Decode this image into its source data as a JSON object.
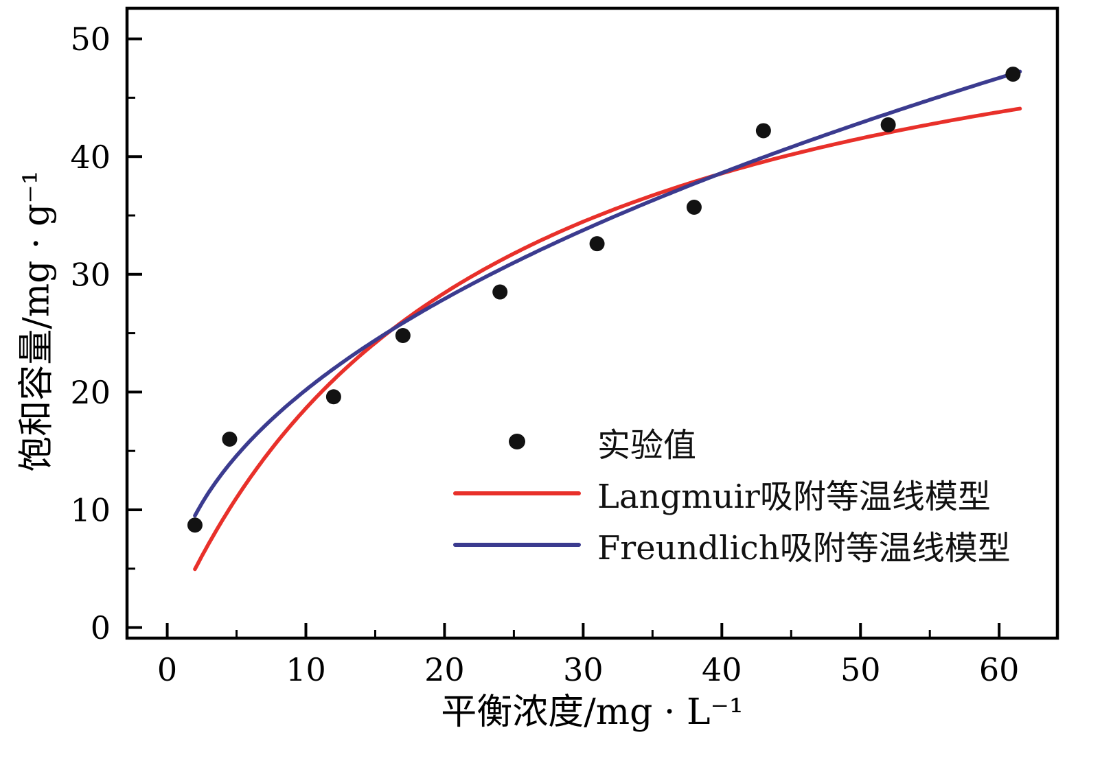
{
  "chart_data": {
    "type": "scatter",
    "title": "",
    "xlabel": "平衡浓度/mg · L⁻¹",
    "ylabel": "饱和容量/mg · g⁻¹",
    "xlim": [
      -2.9,
      64.2
    ],
    "ylim": [
      -0.9,
      52.6
    ],
    "x_ticks": [
      0,
      10,
      20,
      30,
      40,
      50,
      60
    ],
    "y_ticks": [
      0,
      10,
      20,
      30,
      40,
      50
    ],
    "x_minor_step": 5,
    "y_minor_step": 5,
    "grid": false,
    "legend_position": "inside lower right",
    "points": {
      "name": "实验值",
      "color": "#121212",
      "x": [
        2,
        4.5,
        12,
        17,
        24,
        31,
        38,
        43,
        52,
        61
      ],
      "y": [
        8.7,
        16.0,
        19.6,
        24.8,
        28.5,
        32.6,
        35.7,
        42.2,
        42.7,
        47.0
      ]
    },
    "curves": [
      {
        "name": "Langmuir吸附等温线模型",
        "model": "langmuir",
        "color": "#e8302a",
        "qmax": 60,
        "K": 0.045,
        "c_range": [
          2,
          61.5
        ]
      },
      {
        "name": "Freundlich吸附等温线模型",
        "model": "freundlich",
        "color": "#3b3b8f",
        "Kf": 6.87,
        "n_inv": 0.468,
        "c_range": [
          2,
          61.5
        ]
      }
    ]
  }
}
